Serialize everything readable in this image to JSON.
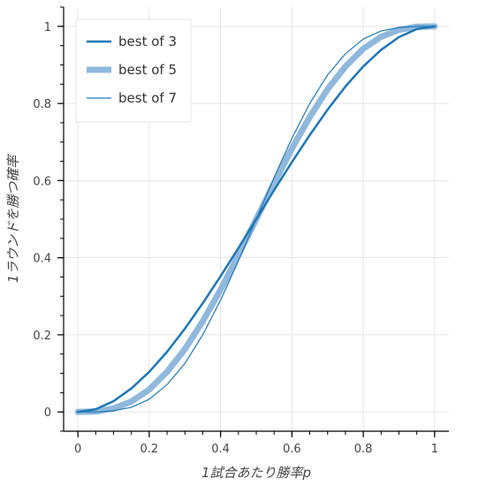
{
  "chart_data": {
    "type": "line",
    "xlabel": "1試合あたり勝率p",
    "ylabel": "1ラウンドを勝つ確率",
    "xlim": [
      -0.04,
      1.04
    ],
    "ylim": [
      -0.05,
      1.05
    ],
    "x_ticks": [
      "0",
      "0.2",
      "0.4",
      "0.6",
      "0.8",
      "1"
    ],
    "y_ticks": [
      "0",
      "0.2",
      "0.4",
      "0.6",
      "0.8",
      "1"
    ],
    "grid": true,
    "legend_position": "top-left",
    "x": [
      0,
      0.05,
      0.1,
      0.15,
      0.2,
      0.25,
      0.3,
      0.35,
      0.4,
      0.45,
      0.5,
      0.55,
      0.6,
      0.65,
      0.7,
      0.75,
      0.8,
      0.85,
      0.9,
      0.95,
      1
    ],
    "series": [
      {
        "name": "best of 3",
        "color": "#1f77b4",
        "width": "medium",
        "values": [
          0,
          0.007,
          0.028,
          0.061,
          0.104,
          0.156,
          0.216,
          0.282,
          0.352,
          0.425,
          0.5,
          0.575,
          0.648,
          0.718,
          0.784,
          0.844,
          0.896,
          0.939,
          0.972,
          0.993,
          1
        ]
      },
      {
        "name": "best of 5",
        "color": "#8fb8dc",
        "width": "thick",
        "values": [
          0,
          0.001,
          0.009,
          0.027,
          0.058,
          0.104,
          0.163,
          0.235,
          0.317,
          0.407,
          0.5,
          0.593,
          0.683,
          0.765,
          0.837,
          0.896,
          0.942,
          0.973,
          0.991,
          0.999,
          1
        ]
      },
      {
        "name": "best of 7",
        "color": "#1f77b4",
        "width": "thin",
        "values": [
          0,
          0.0,
          0.003,
          0.012,
          0.033,
          0.071,
          0.126,
          0.2,
          0.29,
          0.392,
          0.5,
          0.608,
          0.71,
          0.8,
          0.874,
          0.929,
          0.967,
          0.988,
          0.997,
          1.0,
          1
        ]
      }
    ]
  }
}
